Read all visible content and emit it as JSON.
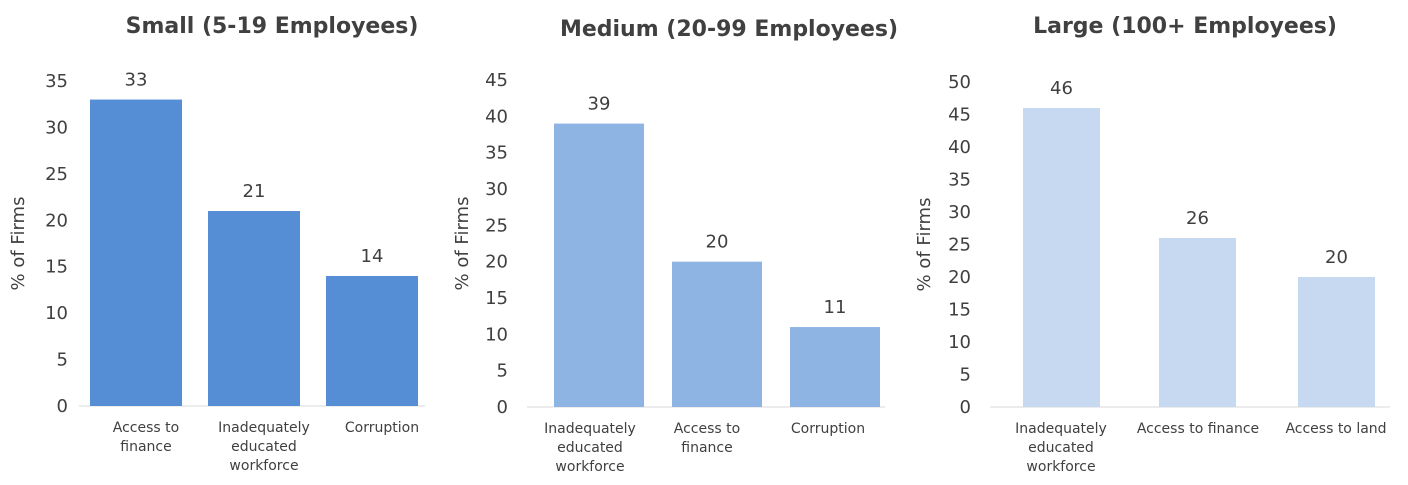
{
  "chart_data": [
    {
      "type": "bar",
      "title": "Small (5-19 Employees)",
      "ylabel": "% of Firms",
      "ylim": [
        0,
        35
      ],
      "yticks": [
        0,
        5,
        10,
        15,
        20,
        25,
        30,
        35
      ],
      "categories": [
        [
          "Access to",
          "finance"
        ],
        [
          "Inadequately",
          "educated",
          "workforce"
        ],
        [
          "Corruption"
        ]
      ],
      "values": [
        33,
        21,
        14
      ],
      "color": "#558ed5",
      "grid": false
    },
    {
      "type": "bar",
      "title": "Medium (20-99 Employees)",
      "ylabel": "% of Firms",
      "ylim": [
        0,
        45
      ],
      "yticks": [
        0,
        5,
        10,
        15,
        20,
        25,
        30,
        35,
        40,
        45
      ],
      "categories": [
        [
          "Inadequately",
          "educated",
          "workforce"
        ],
        [
          "Access to",
          "finance"
        ],
        [
          "Corruption"
        ]
      ],
      "values": [
        39,
        20,
        11
      ],
      "color": "#8eb4e3",
      "grid": false
    },
    {
      "type": "bar",
      "title": "Large (100+ Employees)",
      "ylabel": "% of Firms",
      "ylim": [
        0,
        50
      ],
      "yticks": [
        0,
        5,
        10,
        15,
        20,
        25,
        30,
        35,
        40,
        45,
        50
      ],
      "categories": [
        [
          "Inadequately",
          "educated",
          "workforce"
        ],
        [
          "Access to finance"
        ],
        [
          "Access to land"
        ]
      ],
      "values": [
        46,
        26,
        20
      ],
      "color": "#c6d9f1",
      "grid": false
    }
  ]
}
